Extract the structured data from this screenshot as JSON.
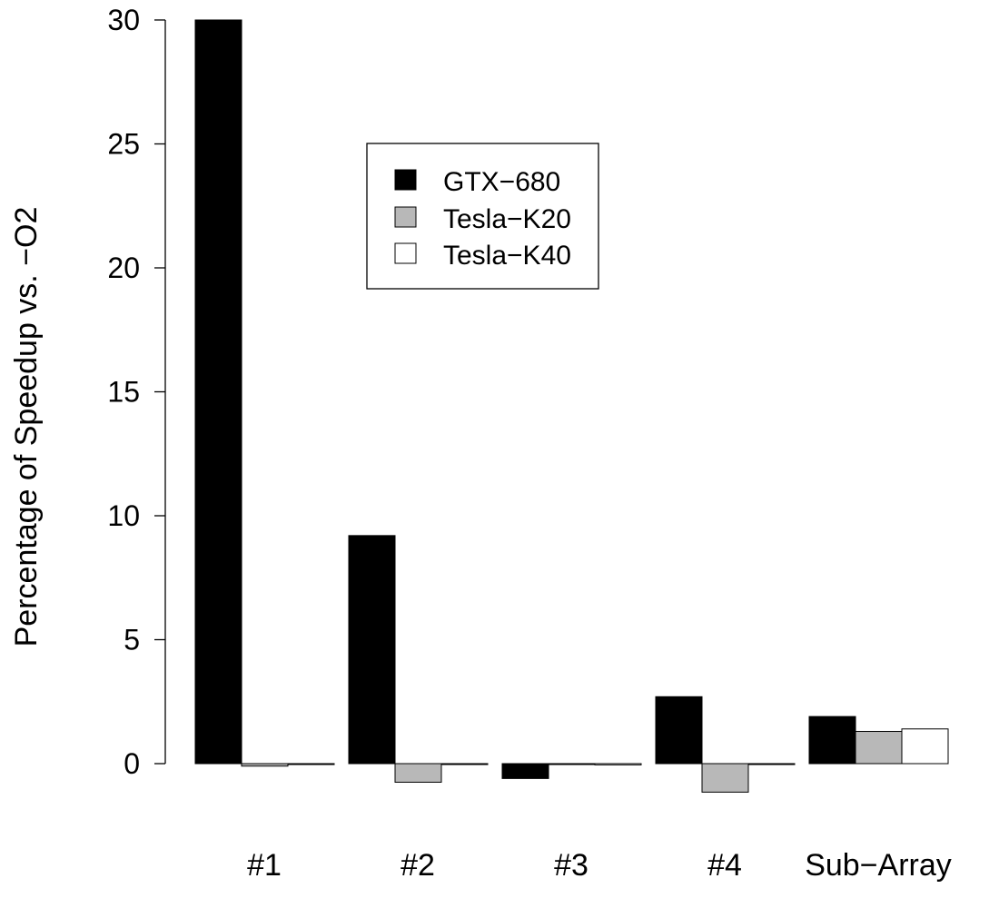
{
  "chart_data": {
    "type": "bar",
    "title": "",
    "xlabel": "",
    "ylabel": "Percentage of Speedup vs. −O2",
    "ylim": [
      0,
      30
    ],
    "yticks": [
      0,
      5,
      10,
      15,
      20,
      25,
      30
    ],
    "yticks_labels": [
      "0",
      "5",
      "10",
      "15",
      "20",
      "25",
      "30"
    ],
    "categories": [
      "#1",
      "#2",
      "#3",
      "#4",
      "Sub−Array"
    ],
    "series": [
      {
        "name": "GTX−680",
        "color": "#000000",
        "values": [
          30.0,
          9.2,
          -0.6,
          2.7,
          1.9
        ]
      },
      {
        "name": "Tesla−K20",
        "color": "#b8b8b8",
        "values": [
          -0.1,
          -0.75,
          0.0,
          -1.15,
          1.3
        ]
      },
      {
        "name": "Tesla−K40",
        "color": "#ffffff",
        "values": [
          0.0,
          0.0,
          -0.05,
          0.0,
          1.4
        ]
      }
    ],
    "legend_position": "top-center",
    "grid": false
  }
}
